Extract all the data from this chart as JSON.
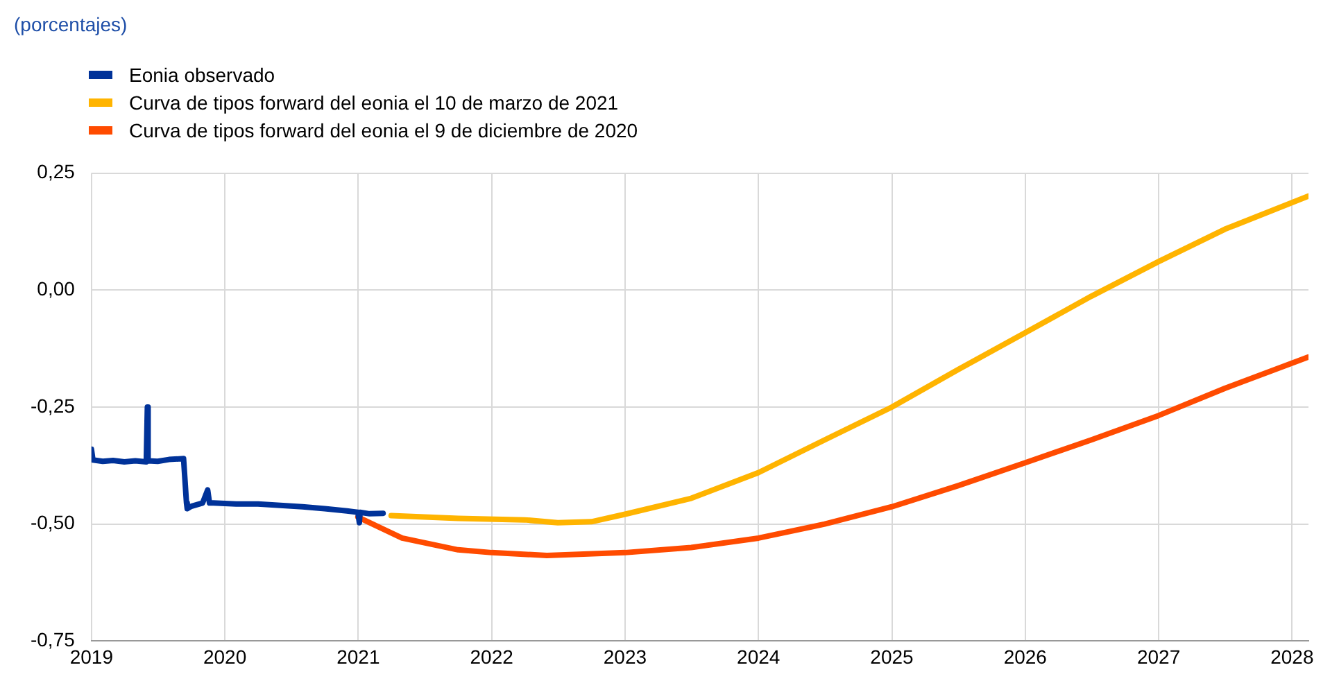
{
  "chart_data": {
    "type": "line",
    "subtitle": "(porcentajes)",
    "xlim": [
      "2019-01-01",
      "2028-02-15"
    ],
    "xticks": [
      {
        "value": "2019",
        "label": "2019"
      },
      {
        "value": "2020",
        "label": "2020"
      },
      {
        "value": "2021",
        "label": "2021"
      },
      {
        "value": "2022",
        "label": "2022"
      },
      {
        "value": "2023",
        "label": "2023"
      },
      {
        "value": "2024",
        "label": "2024"
      },
      {
        "value": "2025",
        "label": "2025"
      },
      {
        "value": "2026",
        "label": "2026"
      },
      {
        "value": "2027",
        "label": "2027"
      },
      {
        "value": "2028",
        "label": "2028"
      }
    ],
    "ylim": [
      -0.75,
      0.25
    ],
    "yticks": [
      {
        "value": -0.75,
        "label": "-0,75"
      },
      {
        "value": -0.5,
        "label": "-0,50"
      },
      {
        "value": -0.25,
        "label": "-0,25"
      },
      {
        "value": 0,
        "label": "0,00"
      },
      {
        "value": 0.25,
        "label": "0,25"
      }
    ],
    "grid": true,
    "legend": "top left",
    "marker": "none",
    "line_style": "solid",
    "series": [
      {
        "name": "Eonia observado",
        "color": "#003299",
        "x": [
          "2019-01-01",
          "2019-01-05",
          "2019-02-01",
          "2019-03-01",
          "2019-04-01",
          "2019-05-01",
          "2019-05-31",
          "2019-06-03",
          "2019-06-05",
          "2019-07-01",
          "2019-08-01",
          "2019-09-10",
          "2019-09-18",
          "2019-09-20",
          "2019-10-01",
          "2019-11-01",
          "2019-11-15",
          "2019-11-20",
          "2019-12-01",
          "2020-02-01",
          "2020-04-01",
          "2020-06-01",
          "2020-08-01",
          "2020-10-01",
          "2020-12-01",
          "2020-12-31",
          "2021-01-04",
          "2021-01-06",
          "2021-02-01",
          "2021-03-10"
        ],
        "values": [
          -0.34,
          -0.363,
          -0.366,
          -0.364,
          -0.367,
          -0.365,
          -0.367,
          -0.25,
          -0.365,
          -0.366,
          -0.362,
          -0.36,
          -0.455,
          -0.467,
          -0.462,
          -0.455,
          -0.427,
          -0.455,
          -0.455,
          -0.457,
          -0.457,
          -0.46,
          -0.463,
          -0.467,
          -0.472,
          -0.475,
          -0.497,
          -0.475,
          -0.478,
          -0.477
        ]
      },
      {
        "name": "Curva de tipos forward del eonia el 10 de marzo de 2021",
        "color": "#ffb400",
        "x": [
          "2021-04-01",
          "2021-10-01",
          "2022-04-01",
          "2022-07-01",
          "2022-10-01",
          "2023-01-01",
          "2023-07-01",
          "2024-01-01",
          "2024-07-01",
          "2025-01-01",
          "2025-07-01",
          "2026-01-01",
          "2026-07-01",
          "2027-01-01",
          "2027-07-01",
          "2028-02-15"
        ],
        "values": [
          -0.482,
          -0.488,
          -0.491,
          -0.497,
          -0.495,
          -0.479,
          -0.445,
          -0.39,
          -0.32,
          -0.25,
          -0.17,
          -0.091,
          -0.013,
          0.061,
          0.13,
          0.201
        ]
      },
      {
        "name": "Curva de tipos forward del eonia el 9 de diciembre de 2020",
        "color": "#ff4b00",
        "x": [
          "2020-12-31",
          "2021-05-01",
          "2021-10-01",
          "2022-01-01",
          "2022-06-01",
          "2023-01-01",
          "2023-07-01",
          "2024-01-01",
          "2024-07-01",
          "2025-01-01",
          "2025-07-01",
          "2026-01-01",
          "2026-07-01",
          "2027-01-01",
          "2027-07-01",
          "2028-02-15"
        ],
        "values": [
          -0.485,
          -0.53,
          -0.555,
          -0.561,
          -0.567,
          -0.561,
          -0.55,
          -0.53,
          -0.5,
          -0.463,
          -0.418,
          -0.369,
          -0.32,
          -0.268,
          -0.21,
          -0.143
        ]
      }
    ]
  }
}
